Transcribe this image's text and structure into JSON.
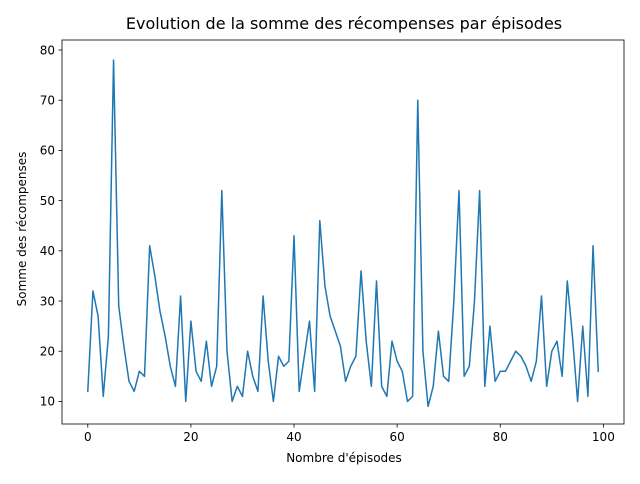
{
  "chart_data": {
    "type": "line",
    "title": "Evolution de la somme des récompenses par épisodes",
    "xlabel": "Nombre d'épisodes",
    "ylabel": "Somme des récompenses",
    "xlim": [
      -5,
      104
    ],
    "ylim": [
      5.5,
      82
    ],
    "xticks": [
      0,
      20,
      40,
      60,
      80,
      100
    ],
    "yticks": [
      10,
      20,
      30,
      40,
      50,
      60,
      70,
      80
    ],
    "grid": false,
    "legend": "none",
    "line_color": "#1f77b4",
    "series": [
      {
        "x": [
          0,
          1,
          2,
          3,
          4,
          5,
          6,
          7,
          8,
          9,
          10,
          11,
          12,
          13,
          14,
          15,
          16,
          17,
          18,
          19,
          20,
          21,
          22,
          23,
          24,
          25,
          26,
          27,
          28,
          29,
          30,
          31,
          32,
          33,
          34,
          35,
          36,
          37,
          38,
          39,
          40,
          41,
          42,
          43,
          44,
          45,
          46,
          47,
          48,
          49,
          50,
          51,
          52,
          53,
          54,
          55,
          56,
          57,
          58,
          59,
          60,
          61,
          62,
          63,
          64,
          65,
          66,
          67,
          68,
          69,
          70,
          71,
          72,
          73,
          74,
          75,
          76,
          77,
          78,
          79,
          80,
          81,
          82,
          83,
          84,
          85,
          86,
          87,
          88,
          89,
          90,
          91,
          92,
          93,
          94,
          95,
          96,
          97,
          98,
          99
        ],
        "values": [
          12,
          32,
          27,
          11,
          23,
          78,
          29,
          21,
          14,
          12,
          16,
          15,
          41,
          35,
          28,
          23,
          17,
          13,
          31,
          10,
          26,
          16,
          14,
          22,
          13,
          17,
          52,
          20,
          10,
          13,
          11,
          20,
          15,
          12,
          31,
          18,
          10,
          19,
          17,
          18,
          43,
          12,
          19,
          26,
          12,
          46,
          33,
          27,
          24,
          21,
          14,
          17,
          19,
          36,
          22,
          13,
          34,
          13,
          11,
          22,
          18,
          16,
          10,
          11,
          70,
          20,
          9,
          13,
          24,
          15,
          14,
          30,
          52,
          15,
          17,
          30,
          52,
          13,
          25,
          14,
          16,
          16,
          18,
          20,
          19,
          17,
          14,
          18,
          31,
          13,
          20,
          22,
          15,
          34,
          23,
          10,
          25,
          11,
          41,
          16
        ]
      }
    ]
  }
}
